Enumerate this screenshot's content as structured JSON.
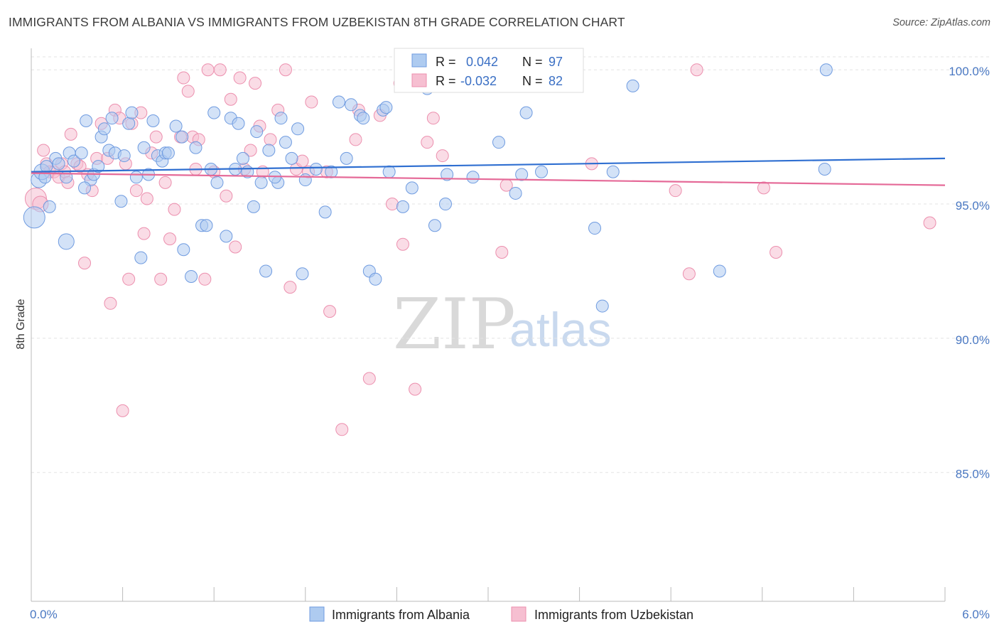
{
  "title": "IMMIGRANTS FROM ALBANIA VS IMMIGRANTS FROM UZBEKISTAN 8TH GRADE CORRELATION CHART",
  "source": "Source: ZipAtlas.com",
  "watermark": {
    "zip": "ZIP",
    "atlas": "atlas"
  },
  "colors": {
    "albania": "#6f9be0",
    "albania_fill": "#aecbf0",
    "albania_line": "#2f6fd1",
    "uzbekistan": "#ec8fae",
    "uzbekistan_fill": "#f6bfd1",
    "uzbekistan_line": "#e56a98"
  },
  "stats": [
    {
      "r_label": "R =",
      "r_value": "0.042",
      "n_label": "N =",
      "n_value": "97"
    },
    {
      "r_label": "R =",
      "r_value": "-0.032",
      "n_label": "N =",
      "n_value": "82"
    }
  ],
  "chart_data": {
    "type": "scatter",
    "title": "IMMIGRANTS FROM ALBANIA VS IMMIGRANTS FROM UZBEKISTAN 8TH GRADE CORRELATION CHART",
    "xlabel": "",
    "ylabel": "8th Grade",
    "xlim": [
      0,
      6
    ],
    "ylim": [
      80.2,
      100.8
    ],
    "x_tick_labels": [
      "0.0%",
      "6.0%"
    ],
    "y_ticks": [
      85,
      90,
      95,
      100
    ],
    "y_tick_labels": [
      "85.0%",
      "90.0%",
      "95.0%",
      "100.0%"
    ],
    "grid": true,
    "legend_position": "bottom-center",
    "series": [
      {
        "name": "Immigrants from Albania",
        "r": 0.042,
        "n": 97,
        "trend": {
          "x": [
            0,
            6
          ],
          "y": [
            96.2,
            96.7
          ]
        },
        "points": [
          [
            0.02,
            94.5,
            3
          ],
          [
            0.05,
            95.9,
            2
          ],
          [
            0.07,
            96.2,
            2
          ],
          [
            0.1,
            96.4,
            1
          ],
          [
            0.12,
            94.9,
            1
          ],
          [
            0.16,
            96.7,
            1
          ],
          [
            0.18,
            96.5,
            1
          ],
          [
            0.23,
            96.0,
            1
          ],
          [
            0.23,
            93.6,
            2
          ],
          [
            0.25,
            96.9,
            1
          ],
          [
            0.28,
            96.6,
            1
          ],
          [
            0.33,
            96.9,
            1
          ],
          [
            0.36,
            98.1,
            1
          ],
          [
            0.39,
            95.9,
            1
          ],
          [
            0.41,
            96.1,
            1
          ],
          [
            0.44,
            96.4,
            1
          ],
          [
            0.46,
            97.5,
            1
          ],
          [
            0.48,
            97.8,
            1
          ],
          [
            0.51,
            97.0,
            1
          ],
          [
            0.53,
            98.2,
            1
          ],
          [
            0.55,
            96.9,
            1
          ],
          [
            0.59,
            95.1,
            1
          ],
          [
            0.61,
            96.8,
            1
          ],
          [
            0.64,
            98.0,
            1
          ],
          [
            0.66,
            98.4,
            1
          ],
          [
            0.69,
            96.0,
            1
          ],
          [
            0.72,
            93.0,
            1
          ],
          [
            0.74,
            97.1,
            1
          ],
          [
            0.77,
            96.1,
            1
          ],
          [
            0.8,
            98.1,
            1
          ],
          [
            0.83,
            96.8,
            1
          ],
          [
            0.86,
            96.6,
            1
          ],
          [
            0.88,
            96.9,
            1
          ],
          [
            0.9,
            96.9,
            1
          ],
          [
            0.95,
            97.9,
            1
          ],
          [
            0.99,
            97.5,
            1
          ],
          [
            1.0,
            93.3,
            1
          ],
          [
            1.05,
            92.3,
            1
          ],
          [
            1.08,
            97.1,
            1
          ],
          [
            1.12,
            94.2,
            1
          ],
          [
            1.15,
            94.2,
            1
          ],
          [
            1.18,
            96.3,
            1
          ],
          [
            1.2,
            98.4,
            1
          ],
          [
            1.22,
            95.8,
            1
          ],
          [
            1.28,
            93.8,
            1
          ],
          [
            1.31,
            98.2,
            1
          ],
          [
            1.34,
            96.3,
            1
          ],
          [
            1.36,
            98.0,
            1
          ],
          [
            1.39,
            96.7,
            1
          ],
          [
            1.42,
            96.2,
            1
          ],
          [
            1.46,
            94.9,
            1
          ],
          [
            1.48,
            97.7,
            1
          ],
          [
            1.51,
            95.8,
            1
          ],
          [
            1.54,
            92.5,
            1
          ],
          [
            1.56,
            97.0,
            1
          ],
          [
            1.62,
            95.8,
            1
          ],
          [
            1.64,
            98.2,
            1
          ],
          [
            1.67,
            97.3,
            1
          ],
          [
            1.71,
            96.7,
            1
          ],
          [
            1.75,
            97.8,
            1
          ],
          [
            1.78,
            92.4,
            1
          ],
          [
            1.8,
            95.9,
            1
          ],
          [
            1.87,
            96.3,
            1
          ],
          [
            1.93,
            94.7,
            1
          ],
          [
            1.97,
            96.2,
            1
          ],
          [
            2.02,
            98.8,
            1
          ],
          [
            2.07,
            96.7,
            1
          ],
          [
            2.1,
            98.7,
            1
          ],
          [
            2.16,
            98.3,
            1
          ],
          [
            2.18,
            98.2,
            1
          ],
          [
            2.22,
            92.5,
            1
          ],
          [
            2.26,
            92.2,
            1
          ],
          [
            2.31,
            98.5,
            1
          ],
          [
            2.33,
            98.6,
            1
          ],
          [
            2.35,
            96.2,
            1
          ],
          [
            2.44,
            94.9,
            1
          ],
          [
            2.6,
            99.3,
            1
          ],
          [
            2.65,
            94.2,
            1
          ],
          [
            2.72,
            95.0,
            1
          ],
          [
            2.73,
            96.1,
            1
          ],
          [
            3.07,
            97.3,
            1
          ],
          [
            3.18,
            95.4,
            1
          ],
          [
            3.22,
            96.1,
            1
          ],
          [
            3.25,
            98.4,
            1
          ],
          [
            3.35,
            96.2,
            1
          ],
          [
            3.7,
            94.1,
            1
          ],
          [
            3.75,
            91.2,
            1
          ],
          [
            3.82,
            96.2,
            1
          ],
          [
            3.95,
            99.4,
            1
          ],
          [
            4.52,
            92.5,
            1
          ],
          [
            5.21,
            96.3,
            1
          ],
          [
            5.22,
            100.0,
            1
          ],
          [
            2.9,
            96.0,
            1
          ],
          [
            1.6,
            96.0,
            1
          ],
          [
            0.35,
            95.6,
            1
          ],
          [
            0.09,
            96.0,
            1
          ],
          [
            2.5,
            95.6,
            1
          ]
        ]
      },
      {
        "name": "Immigrants from Uzbekistan",
        "r": -0.032,
        "n": 82,
        "trend": {
          "x": [
            0,
            6
          ],
          "y": [
            96.15,
            95.7
          ]
        },
        "points": [
          [
            0.03,
            95.2,
            3
          ],
          [
            0.06,
            95.0,
            2
          ],
          [
            0.08,
            97.0,
            1
          ],
          [
            0.1,
            96.5,
            1
          ],
          [
            0.12,
            96.2,
            1
          ],
          [
            0.15,
            96.2,
            1
          ],
          [
            0.18,
            96.0,
            1
          ],
          [
            0.2,
            96.5,
            1
          ],
          [
            0.22,
            96.2,
            1
          ],
          [
            0.24,
            95.8,
            1
          ],
          [
            0.26,
            97.6,
            1
          ],
          [
            0.3,
            96.5,
            1
          ],
          [
            0.32,
            96.4,
            1
          ],
          [
            0.35,
            92.8,
            1
          ],
          [
            0.37,
            96.1,
            1
          ],
          [
            0.4,
            95.5,
            1
          ],
          [
            0.43,
            96.7,
            1
          ],
          [
            0.46,
            98.0,
            1
          ],
          [
            0.5,
            96.7,
            1
          ],
          [
            0.52,
            91.3,
            1
          ],
          [
            0.55,
            98.5,
            1
          ],
          [
            0.58,
            98.2,
            1
          ],
          [
            0.6,
            87.3,
            1
          ],
          [
            0.62,
            96.5,
            1
          ],
          [
            0.64,
            92.2,
            1
          ],
          [
            0.66,
            98.0,
            1
          ],
          [
            0.69,
            95.5,
            1
          ],
          [
            0.72,
            98.4,
            1
          ],
          [
            0.74,
            93.9,
            1
          ],
          [
            0.76,
            95.2,
            1
          ],
          [
            0.79,
            96.9,
            1
          ],
          [
            0.82,
            97.5,
            1
          ],
          [
            0.85,
            92.2,
            1
          ],
          [
            0.88,
            95.8,
            1
          ],
          [
            0.91,
            93.7,
            1
          ],
          [
            0.94,
            94.8,
            1
          ],
          [
            0.98,
            97.5,
            1
          ],
          [
            1.0,
            99.7,
            1
          ],
          [
            1.03,
            99.2,
            1
          ],
          [
            1.06,
            97.5,
            1
          ],
          [
            1.08,
            96.3,
            1
          ],
          [
            1.1,
            97.4,
            1
          ],
          [
            1.14,
            92.2,
            1
          ],
          [
            1.16,
            100.0,
            1
          ],
          [
            1.2,
            96.2,
            1
          ],
          [
            1.24,
            100.0,
            1
          ],
          [
            1.28,
            95.3,
            1
          ],
          [
            1.31,
            98.9,
            1
          ],
          [
            1.34,
            93.4,
            1
          ],
          [
            1.37,
            99.7,
            1
          ],
          [
            1.4,
            96.3,
            1
          ],
          [
            1.44,
            97.0,
            1
          ],
          [
            1.47,
            99.5,
            1
          ],
          [
            1.5,
            97.9,
            1
          ],
          [
            1.52,
            96.2,
            1
          ],
          [
            1.57,
            97.4,
            1
          ],
          [
            1.62,
            98.5,
            1
          ],
          [
            1.67,
            100.0,
            1
          ],
          [
            1.7,
            91.9,
            1
          ],
          [
            1.74,
            96.3,
            1
          ],
          [
            1.78,
            96.6,
            1
          ],
          [
            1.82,
            96.2,
            1
          ],
          [
            1.84,
            98.8,
            1
          ],
          [
            1.94,
            96.2,
            1
          ],
          [
            1.96,
            91.0,
            1
          ],
          [
            2.04,
            86.6,
            1
          ],
          [
            2.13,
            97.4,
            1
          ],
          [
            2.15,
            98.5,
            1
          ],
          [
            2.22,
            88.5,
            1
          ],
          [
            2.29,
            98.3,
            1
          ],
          [
            2.37,
            95.0,
            1
          ],
          [
            2.42,
            99.5,
            1
          ],
          [
            2.44,
            93.5,
            1
          ],
          [
            2.52,
            88.1,
            1
          ],
          [
            2.6,
            97.3,
            1
          ],
          [
            2.64,
            98.2,
            1
          ],
          [
            2.7,
            96.8,
            1
          ],
          [
            3.09,
            93.2,
            1
          ],
          [
            3.12,
            95.7,
            1
          ],
          [
            3.68,
            96.5,
            1
          ],
          [
            4.23,
            95.5,
            1
          ],
          [
            4.32,
            92.4,
            1
          ],
          [
            4.37,
            100.0,
            1
          ],
          [
            4.81,
            95.6,
            1
          ],
          [
            4.89,
            93.2,
            1
          ],
          [
            5.9,
            94.3,
            1
          ]
        ]
      }
    ]
  },
  "legend": {
    "items": [
      "Immigrants from Albania",
      "Immigrants from Uzbekistan"
    ]
  }
}
